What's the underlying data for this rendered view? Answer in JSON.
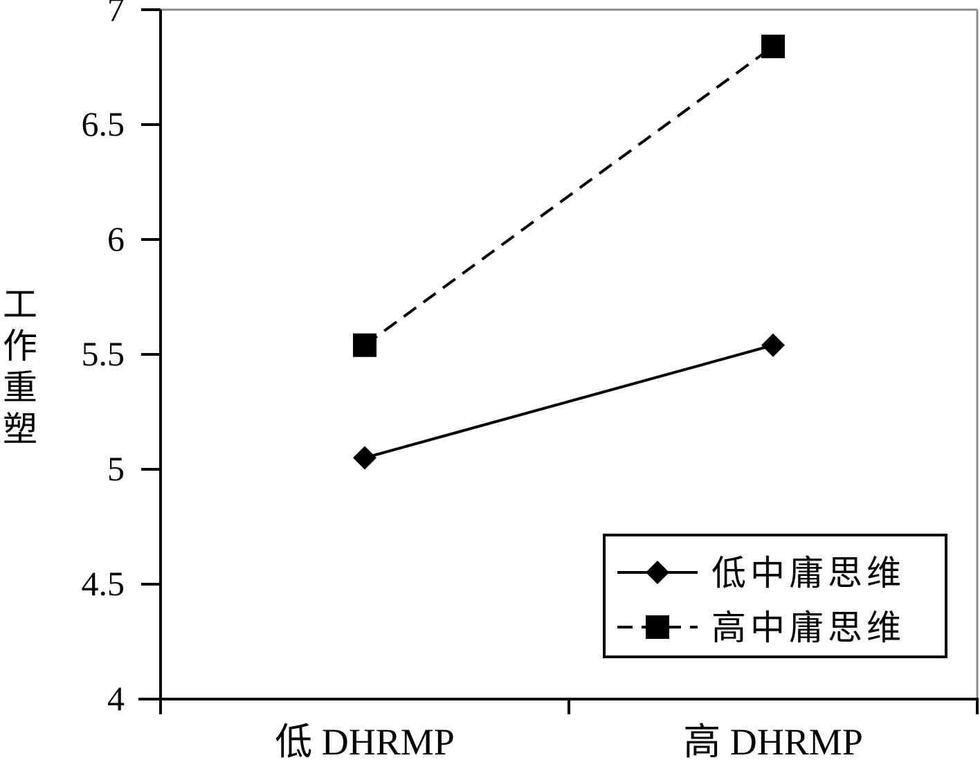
{
  "chart_data": {
    "type": "line",
    "title": "",
    "xlabel": "",
    "ylabel": "工作重塑",
    "categories": [
      "低 DHRMP",
      "高 DHRMP"
    ],
    "ylim": [
      4,
      7
    ],
    "yticks": [
      "4",
      "4.5",
      "5",
      "5.5",
      "6",
      "6.5",
      "7"
    ],
    "grid": false,
    "legend_position": "bottom-right",
    "series": [
      {
        "name": "低中庸思维",
        "values": [
          5.05,
          5.54
        ],
        "line_style": "solid",
        "marker": "diamond",
        "color": "#000000"
      },
      {
        "name": "高中庸思维",
        "values": [
          5.54,
          6.84
        ],
        "line_style": "dashed",
        "marker": "square",
        "color": "#000000"
      }
    ]
  }
}
